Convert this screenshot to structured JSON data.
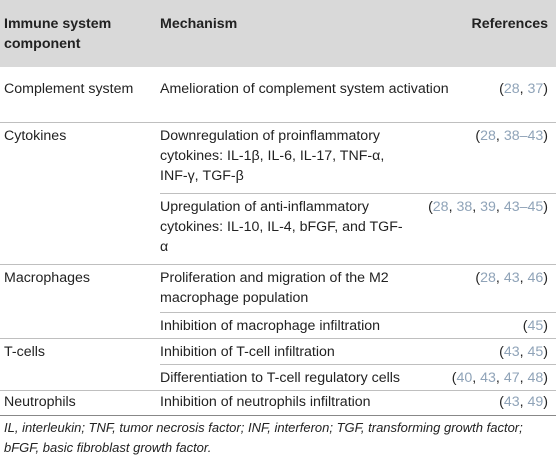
{
  "header": {
    "col1": "Immune system component",
    "col2": "Mechanism",
    "col3": "References"
  },
  "rows": [
    {
      "component": "Complement system",
      "mechanism": "Amelioration of complement system activation",
      "refs": [
        "28",
        "37"
      ]
    },
    {
      "component": "Cytokines",
      "mechanism": "Downregulation of proinflammatory cytokines: IL-1β, IL-6, IL-17, TNF-α, INF-γ, TGF-β",
      "refs": [
        "28",
        "38–43"
      ]
    },
    {
      "component": "",
      "mechanism": "Upregulation of anti-inflammatory cytokines: IL-10, IL-4, bFGF, and TGF-α",
      "refs": [
        "28",
        "38",
        "39",
        "43–45"
      ]
    },
    {
      "component": "Macrophages",
      "mechanism": "Proliferation and migration of the M2 macrophage population",
      "refs": [
        "28",
        "43",
        "46"
      ]
    },
    {
      "component": "",
      "mechanism": "Inhibition of macrophage infiltration",
      "refs": [
        "45"
      ]
    },
    {
      "component": "T-cells",
      "mechanism": "Inhibition of T-cell infiltration",
      "refs": [
        "43",
        "45"
      ]
    },
    {
      "component": "",
      "mechanism": "Differentiation to T-cell regulatory cells",
      "refs": [
        "40",
        "43",
        "47",
        "48"
      ]
    },
    {
      "component": "Neutrophils",
      "mechanism": "Inhibition of neutrophils infiltration",
      "refs": [
        "43",
        "49"
      ]
    }
  ],
  "footnote": "IL, interleukin; TNF, tumor necrosis factor; INF, interferon; TGF, transforming growth factor; bFGF, basic fibroblast growth factor."
}
